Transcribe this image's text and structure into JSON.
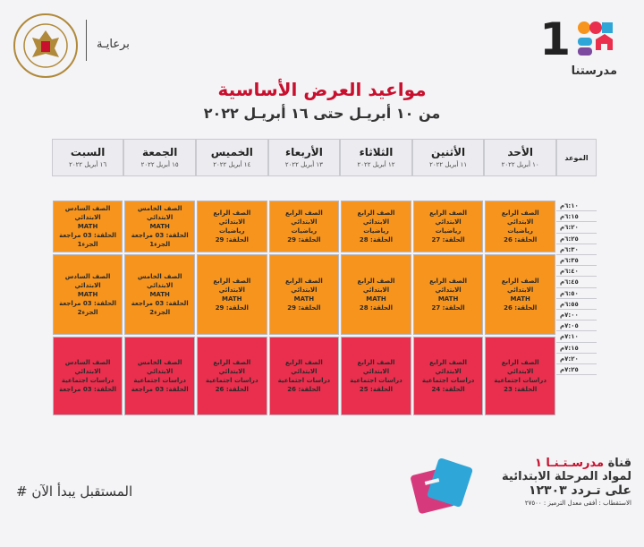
{
  "header": {
    "logo_digit": "1",
    "logo_text": "مدرستنا",
    "sponsor_label": "برعايـة",
    "title": "مواعيد العرض الأساسية",
    "subtitle": "من ١٠ أبريـل حتى ١٦ أبريـل ٢٠٢٢"
  },
  "schedule": {
    "time_header": "الموعد",
    "days": [
      {
        "name": "الأحد",
        "date": "١٠ أبريل ٢٠٢٢"
      },
      {
        "name": "الأثنين",
        "date": "١١ أبريل ٢٠٢٢"
      },
      {
        "name": "الثلاثاء",
        "date": "١٢ أبريل ٢٠٢٢"
      },
      {
        "name": "الأربعاء",
        "date": "١٣ أبريل ٢٠٢٢"
      },
      {
        "name": "الخميس",
        "date": "١٤ أبريل ٢٠٢٢"
      },
      {
        "name": "الجمعة",
        "date": "١٥ أبريل ٢٠٢٢"
      },
      {
        "name": "السبت",
        "date": "١٦ أبريل ٢٠٢٢"
      }
    ],
    "times": [
      "٦:١٠م",
      "٦:١٥م",
      "٦:٢٠م",
      "٦:٢٥م",
      "٦:٣٠م",
      "٦:٣٥م",
      "٦:٤٠م",
      "٦:٤٥م",
      "٦:٥٠م",
      "٦:٥٥م",
      "٧:٠٠م",
      "٧:٠٥م",
      "٧:١٠م",
      "٧:١٥م",
      "٧:٢٠م",
      "٧:٢٥م"
    ],
    "blocks": [
      {
        "color": "orange",
        "cells": [
          "الصف الرابع الابتدائي\nرياضيات\nالحلقة: 26",
          "الصف الرابع الابتدائي\nرياضيات\nالحلقة: 27",
          "الصف الرابع الابتدائي\nرياضيات\nالحلقة: 28",
          "الصف الرابع الابتدائي\nرياضيات\nالحلقة: 29",
          "الصف الرابع الابتدائي\nرياضيات\nالحلقة: 29",
          "الصف الخامس الابتدائي\nMATH\nالحلقة: 03 مراجعة\nالجزء1",
          "الصف السادس الابتدائي\nMATH\nالحلقة: 03 مراجعة\nالجزء1"
        ]
      },
      {
        "color": "orange",
        "cells": [
          "الصف الرابع الابتدائي\nMATH\nالحلقة: 26",
          "الصف الرابع الابتدائي\nMATH\nالحلقة: 27",
          "الصف الرابع الابتدائي\nMATH\nالحلقة: 28",
          "الصف الرابع الابتدائي\nMATH\nالحلقة: 29",
          "الصف الرابع الابتدائي\nMATH\nالحلقة: 29",
          "الصف الخامس الابتدائي\nMATH\nالحلقة: 03 مراجعة\nالجزء2",
          "الصف السادس الابتدائي\nMATH\nالحلقة: 03 مراجعة\nالجزء2"
        ]
      },
      {
        "color": "red",
        "cells": [
          "الصف الرابع الابتدائي\nدراسات اجتماعية\nالحلقة: 23",
          "الصف الرابع الابتدائي\nدراسات اجتماعية\nالحلقة: 24",
          "الصف الرابع الابتدائي\nدراسات اجتماعية\nالحلقة: 25",
          "الصف الرابع الابتدائي\nدراسات اجتماعية\nالحلقة: 26",
          "الصف الرابع الابتدائي\nدراسات اجتماعية\nالحلقة: 26",
          "الصف الخامس الابتدائي\nدراسات اجتماعية\nالحلقة: 03 مراجعة",
          "الصف السادس الابتدائي\nدراسات اجتماعية\nالحلقة: 03 مراجعة"
        ]
      }
    ]
  },
  "footer": {
    "hashtag": "# المستقبل يبدأ الآن",
    "channel_prefix": "قناة",
    "channel_name": "مدرسـتـنـا ١",
    "channel_line2": "لمواد المرحلة الابتدائية",
    "channel_line3": "على تـردد ١٢٣٠٣",
    "reception": "الاستقطاب : أفقى معدل الترميز : ٢٧٥٠٠"
  },
  "colors": {
    "orange": "#f7941d",
    "red": "#ea2e4d",
    "title_red": "#c8102e"
  }
}
